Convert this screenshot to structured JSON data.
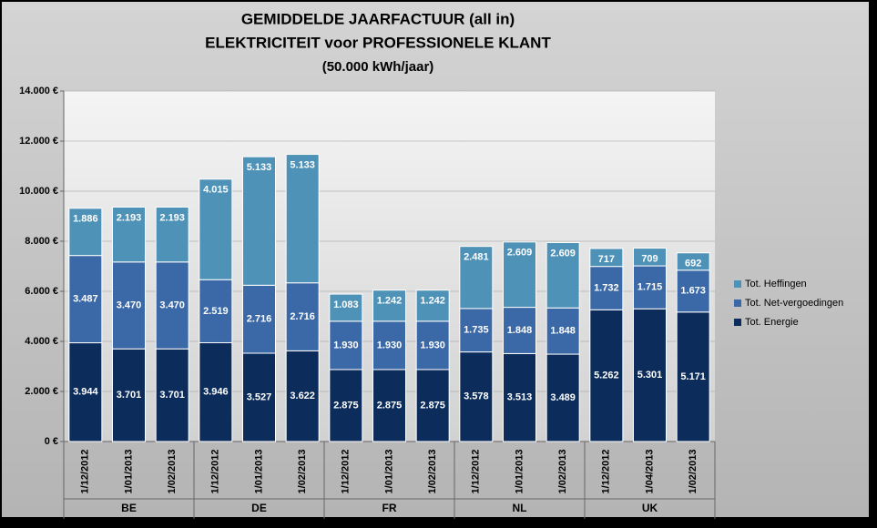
{
  "chart_data": {
    "type": "stacked-bar",
    "title": [
      "GEMIDDELDE JAARFACTUUR (all in)",
      "ELEKTRICITEIT voor PROFESSIONELE KLANT"
    ],
    "subtitle": "(50.000 kWh/jaar)",
    "categories": [
      "1/12/2012",
      "1/01/2013",
      "1/02/2013",
      "1/12/2012",
      "1/01/2013",
      "1/02/2013",
      "1/12/2012",
      "1/01/2013",
      "1/02/2013",
      "1/12/2012",
      "1/01/2013",
      "1/02/2013",
      "1/12/2012",
      "1/04/2013",
      "1/02/2013"
    ],
    "groups": [
      "BE",
      "DE",
      "FR",
      "NL",
      "UK"
    ],
    "series": [
      {
        "name": "Tot. Energie",
        "color": "#0c2d5c",
        "values": [
          3944,
          3701,
          3701,
          3946,
          3527,
          3622,
          2875,
          2875,
          2875,
          3578,
          3513,
          3489,
          5262,
          5301,
          5171
        ],
        "value_labels": [
          "3.944",
          "3.701",
          "3.701",
          "3.946",
          "3.527",
          "3.622",
          "2.875",
          "2.875",
          "2.875",
          "3.578",
          "3.513",
          "3.489",
          "5.262",
          "5.301",
          "5.171"
        ]
      },
      {
        "name": "Tot. Net-vergoedingen",
        "color": "#3b68a6",
        "values": [
          3487,
          3470,
          3470,
          2519,
          2716,
          2716,
          1930,
          1930,
          1930,
          1735,
          1848,
          1848,
          1732,
          1715,
          1673
        ],
        "value_labels": [
          "3.487",
          "3.470",
          "3.470",
          "2.519",
          "2.716",
          "2.716",
          "1.930",
          "1.930",
          "1.930",
          "1.735",
          "1.848",
          "1.848",
          "1.732",
          "1.715",
          "1.673"
        ]
      },
      {
        "name": "Tot. Heffingen",
        "color": "#4f92b7",
        "values": [
          1886,
          2193,
          2193,
          4015,
          5133,
          5133,
          1083,
          1242,
          1242,
          2481,
          2609,
          2609,
          717,
          709,
          692
        ],
        "value_labels": [
          "1.886",
          "2.193",
          "2.193",
          "4.015",
          "5.133",
          "5.133",
          "1.083",
          "1.242",
          "1.242",
          "2.481",
          "2.609",
          "2.609",
          "717",
          "709",
          "692"
        ]
      }
    ],
    "ylim": [
      0,
      14000
    ],
    "yticks": [
      {
        "value": 0,
        "label": "0 €"
      },
      {
        "value": 2000,
        "label": "2.000 €"
      },
      {
        "value": 4000,
        "label": "4.000 €"
      },
      {
        "value": 6000,
        "label": "6.000 €"
      },
      {
        "value": 8000,
        "label": "8.000 €"
      },
      {
        "value": 10000,
        "label": "10.000 €"
      },
      {
        "value": 12000,
        "label": "12.000 €"
      },
      {
        "value": 14000,
        "label": "14.000 €"
      }
    ],
    "grid": true,
    "legend": "right"
  }
}
